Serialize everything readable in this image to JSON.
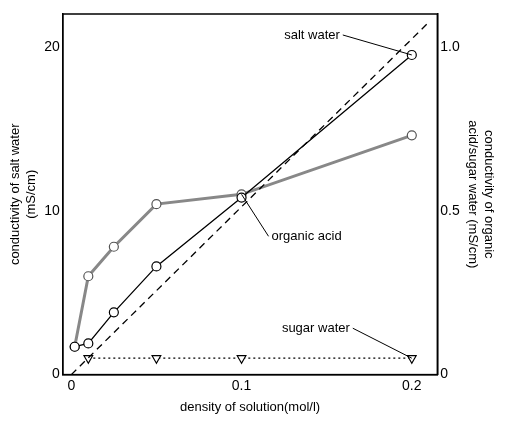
{
  "chart_data": {
    "type": "line",
    "x_label": "density of solution(mol/l)",
    "y_label": "conductivity of salt water (mS/cm)",
    "y2_label": "conductivity of organic acid/sugar water (mS/cm)",
    "xlim": [
      -0.005,
      0.215
    ],
    "xticks": [
      0,
      0.1,
      0.2
    ],
    "ylim": [
      0,
      22
    ],
    "yticks": [
      0,
      10,
      20
    ],
    "y2lim": [
      0,
      1.1
    ],
    "y2ticks": [
      0,
      0.5,
      {
        "value": 1,
        "label": "1.0"
      }
    ],
    "grid": false,
    "series": [
      {
        "name": "salt water",
        "color": "#000000",
        "axis": "y",
        "marker": "circle",
        "line_style": "solid",
        "x": [
          0.002,
          0.01,
          0.025,
          0.05,
          0.1,
          0.2
        ],
        "values": [
          1.7,
          1.9,
          3.8,
          6.6,
          10.8,
          19.5
        ]
      },
      {
        "name": "salt water",
        "color": "#000000",
        "axis": "y",
        "marker": "none",
        "line_style": "dashed",
        "x": [
          0,
          0.21
        ],
        "values": [
          0,
          21.5
        ]
      },
      {
        "name": "organic acid",
        "color": "#888888",
        "axis": "y2",
        "marker": "circle",
        "line_style": "solid",
        "x": [
          0.002,
          0.01,
          0.025,
          0.05,
          0.1,
          0.2
        ],
        "values": [
          0.085,
          0.3,
          0.39,
          0.52,
          0.55,
          0.73
        ]
      },
      {
        "name": "sugar water",
        "color": "#000000",
        "axis": "y2",
        "marker": "triangle-down",
        "line_style": "dotted",
        "x": [
          0.01,
          0.05,
          0.1,
          0.2
        ],
        "values": [
          0.05,
          0.05,
          0.05,
          0.05
        ]
      }
    ]
  }
}
